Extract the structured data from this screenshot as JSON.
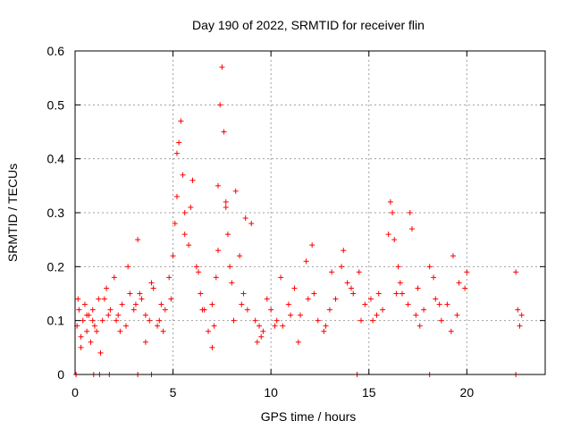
{
  "chart_data": {
    "type": "scatter",
    "title": "Day 190 of 2022, SRMTID for receiver flin",
    "xlabel": "GPS time / hours",
    "ylabel": "SRMTID / TECUs",
    "xlim": [
      0,
      24
    ],
    "ylim": [
      0,
      0.6
    ],
    "x_ticks": [
      0,
      5,
      10,
      15,
      20
    ],
    "x_tick_labels": [
      "0",
      "5",
      "10",
      "15",
      "20"
    ],
    "y_ticks": [
      0,
      0.1,
      0.2,
      0.3,
      0.4,
      0.5,
      0.6
    ],
    "y_tick_labels": [
      "0",
      "0.1",
      "0.2",
      "0.3",
      "0.4",
      "0.5",
      "0.6"
    ],
    "grid": true,
    "marker": "+",
    "color": "#ff0000",
    "series": [
      {
        "name": "SRMTID",
        "x": [
          0.1,
          0.2,
          0.3,
          0.4,
          0.5,
          0.6,
          0.7,
          0.8,
          0.9,
          1.0,
          1.2,
          1.4,
          1.6,
          1.8,
          2.0,
          2.2,
          2.4,
          2.6,
          2.8,
          3.0,
          3.2,
          3.4,
          3.6,
          3.8,
          4.0,
          4.2,
          4.4,
          4.6,
          4.8,
          5.0,
          5.1,
          5.2,
          5.3,
          5.4,
          5.5,
          5.6,
          5.8,
          6.0,
          6.2,
          6.4,
          6.6,
          6.8,
          7.0,
          7.1,
          7.2,
          7.3,
          7.4,
          7.5,
          7.6,
          7.7,
          7.8,
          7.9,
          8.0,
          8.2,
          8.4,
          8.6,
          8.8,
          9.0,
          9.2,
          9.4,
          9.6,
          9.8,
          10.0,
          10.3,
          10.6,
          10.9,
          11.2,
          11.5,
          11.8,
          12.1,
          12.4,
          12.7,
          13.0,
          13.3,
          13.6,
          13.9,
          14.2,
          14.5,
          14.8,
          15.1,
          15.4,
          15.7,
          16.0,
          16.1,
          16.2,
          16.3,
          16.5,
          16.7,
          17.0,
          17.1,
          17.2,
          17.5,
          17.8,
          18.1,
          18.4,
          18.7,
          19.0,
          19.3,
          19.6,
          19.9,
          22.5,
          22.6,
          22.7,
          22.8,
          0.3,
          0.6,
          1.1,
          1.5,
          2.1,
          2.7,
          3.3,
          3.9,
          4.5,
          5.2,
          5.9,
          6.5,
          7.3,
          8.1,
          8.7,
          9.5,
          10.5,
          11.4,
          12.2,
          13.1,
          14.1,
          15.2,
          16.4,
          17.4,
          18.3,
          19.2,
          20.0,
          0.15,
          0.9,
          1.3,
          1.7,
          2.3,
          3.1,
          3.6,
          4.3,
          4.9,
          5.6,
          6.3,
          7.0,
          7.7,
          8.5,
          9.3,
          10.2,
          11.0,
          11.9,
          12.8,
          13.7,
          14.6,
          15.5,
          16.6,
          17.6,
          18.6,
          19.5,
          0.05,
          0.95,
          1.25,
          1.75,
          3.2,
          3.9,
          14.4,
          18.1,
          22.5
        ],
        "y": [
          0.09,
          0.12,
          0.07,
          0.1,
          0.13,
          0.08,
          0.11,
          0.06,
          0.12,
          0.09,
          0.14,
          0.1,
          0.16,
          0.12,
          0.18,
          0.11,
          0.13,
          0.09,
          0.15,
          0.12,
          0.25,
          0.14,
          0.11,
          0.1,
          0.16,
          0.09,
          0.13,
          0.12,
          0.18,
          0.22,
          0.28,
          0.33,
          0.43,
          0.47,
          0.37,
          0.3,
          0.24,
          0.36,
          0.2,
          0.15,
          0.12,
          0.08,
          0.05,
          0.09,
          0.18,
          0.35,
          0.5,
          0.57,
          0.45,
          0.31,
          0.26,
          0.2,
          0.17,
          0.34,
          0.22,
          0.15,
          0.12,
          0.28,
          0.1,
          0.09,
          0.08,
          0.14,
          0.12,
          0.1,
          0.09,
          0.13,
          0.16,
          0.11,
          0.21,
          0.24,
          0.1,
          0.08,
          0.12,
          0.14,
          0.2,
          0.17,
          0.15,
          0.19,
          0.13,
          0.14,
          0.11,
          0.12,
          0.26,
          0.32,
          0.3,
          0.25,
          0.2,
          0.15,
          0.13,
          0.3,
          0.27,
          0.16,
          0.12,
          0.2,
          0.14,
          0.1,
          0.13,
          0.22,
          0.17,
          0.16,
          0.19,
          0.12,
          0.09,
          0.11,
          0.05,
          0.11,
          0.08,
          0.14,
          0.1,
          0.2,
          0.15,
          0.17,
          0.08,
          0.41,
          0.31,
          0.12,
          0.23,
          0.1,
          0.29,
          0.07,
          0.18,
          0.06,
          0.15,
          0.19,
          0.16,
          0.1,
          0.15,
          0.11,
          0.18,
          0.08,
          0.19,
          0.14,
          0.1,
          0.04,
          0.11,
          0.08,
          0.13,
          0.06,
          0.1,
          0.14,
          0.26,
          0.19,
          0.13,
          0.32,
          0.13,
          0.06,
          0.09,
          0.11,
          0.14,
          0.09,
          0.23,
          0.1,
          0.15,
          0.17,
          0.09,
          0.13,
          0.11,
          0,
          0,
          0,
          0,
          0,
          0,
          0,
          0,
          0
        ]
      }
    ]
  }
}
